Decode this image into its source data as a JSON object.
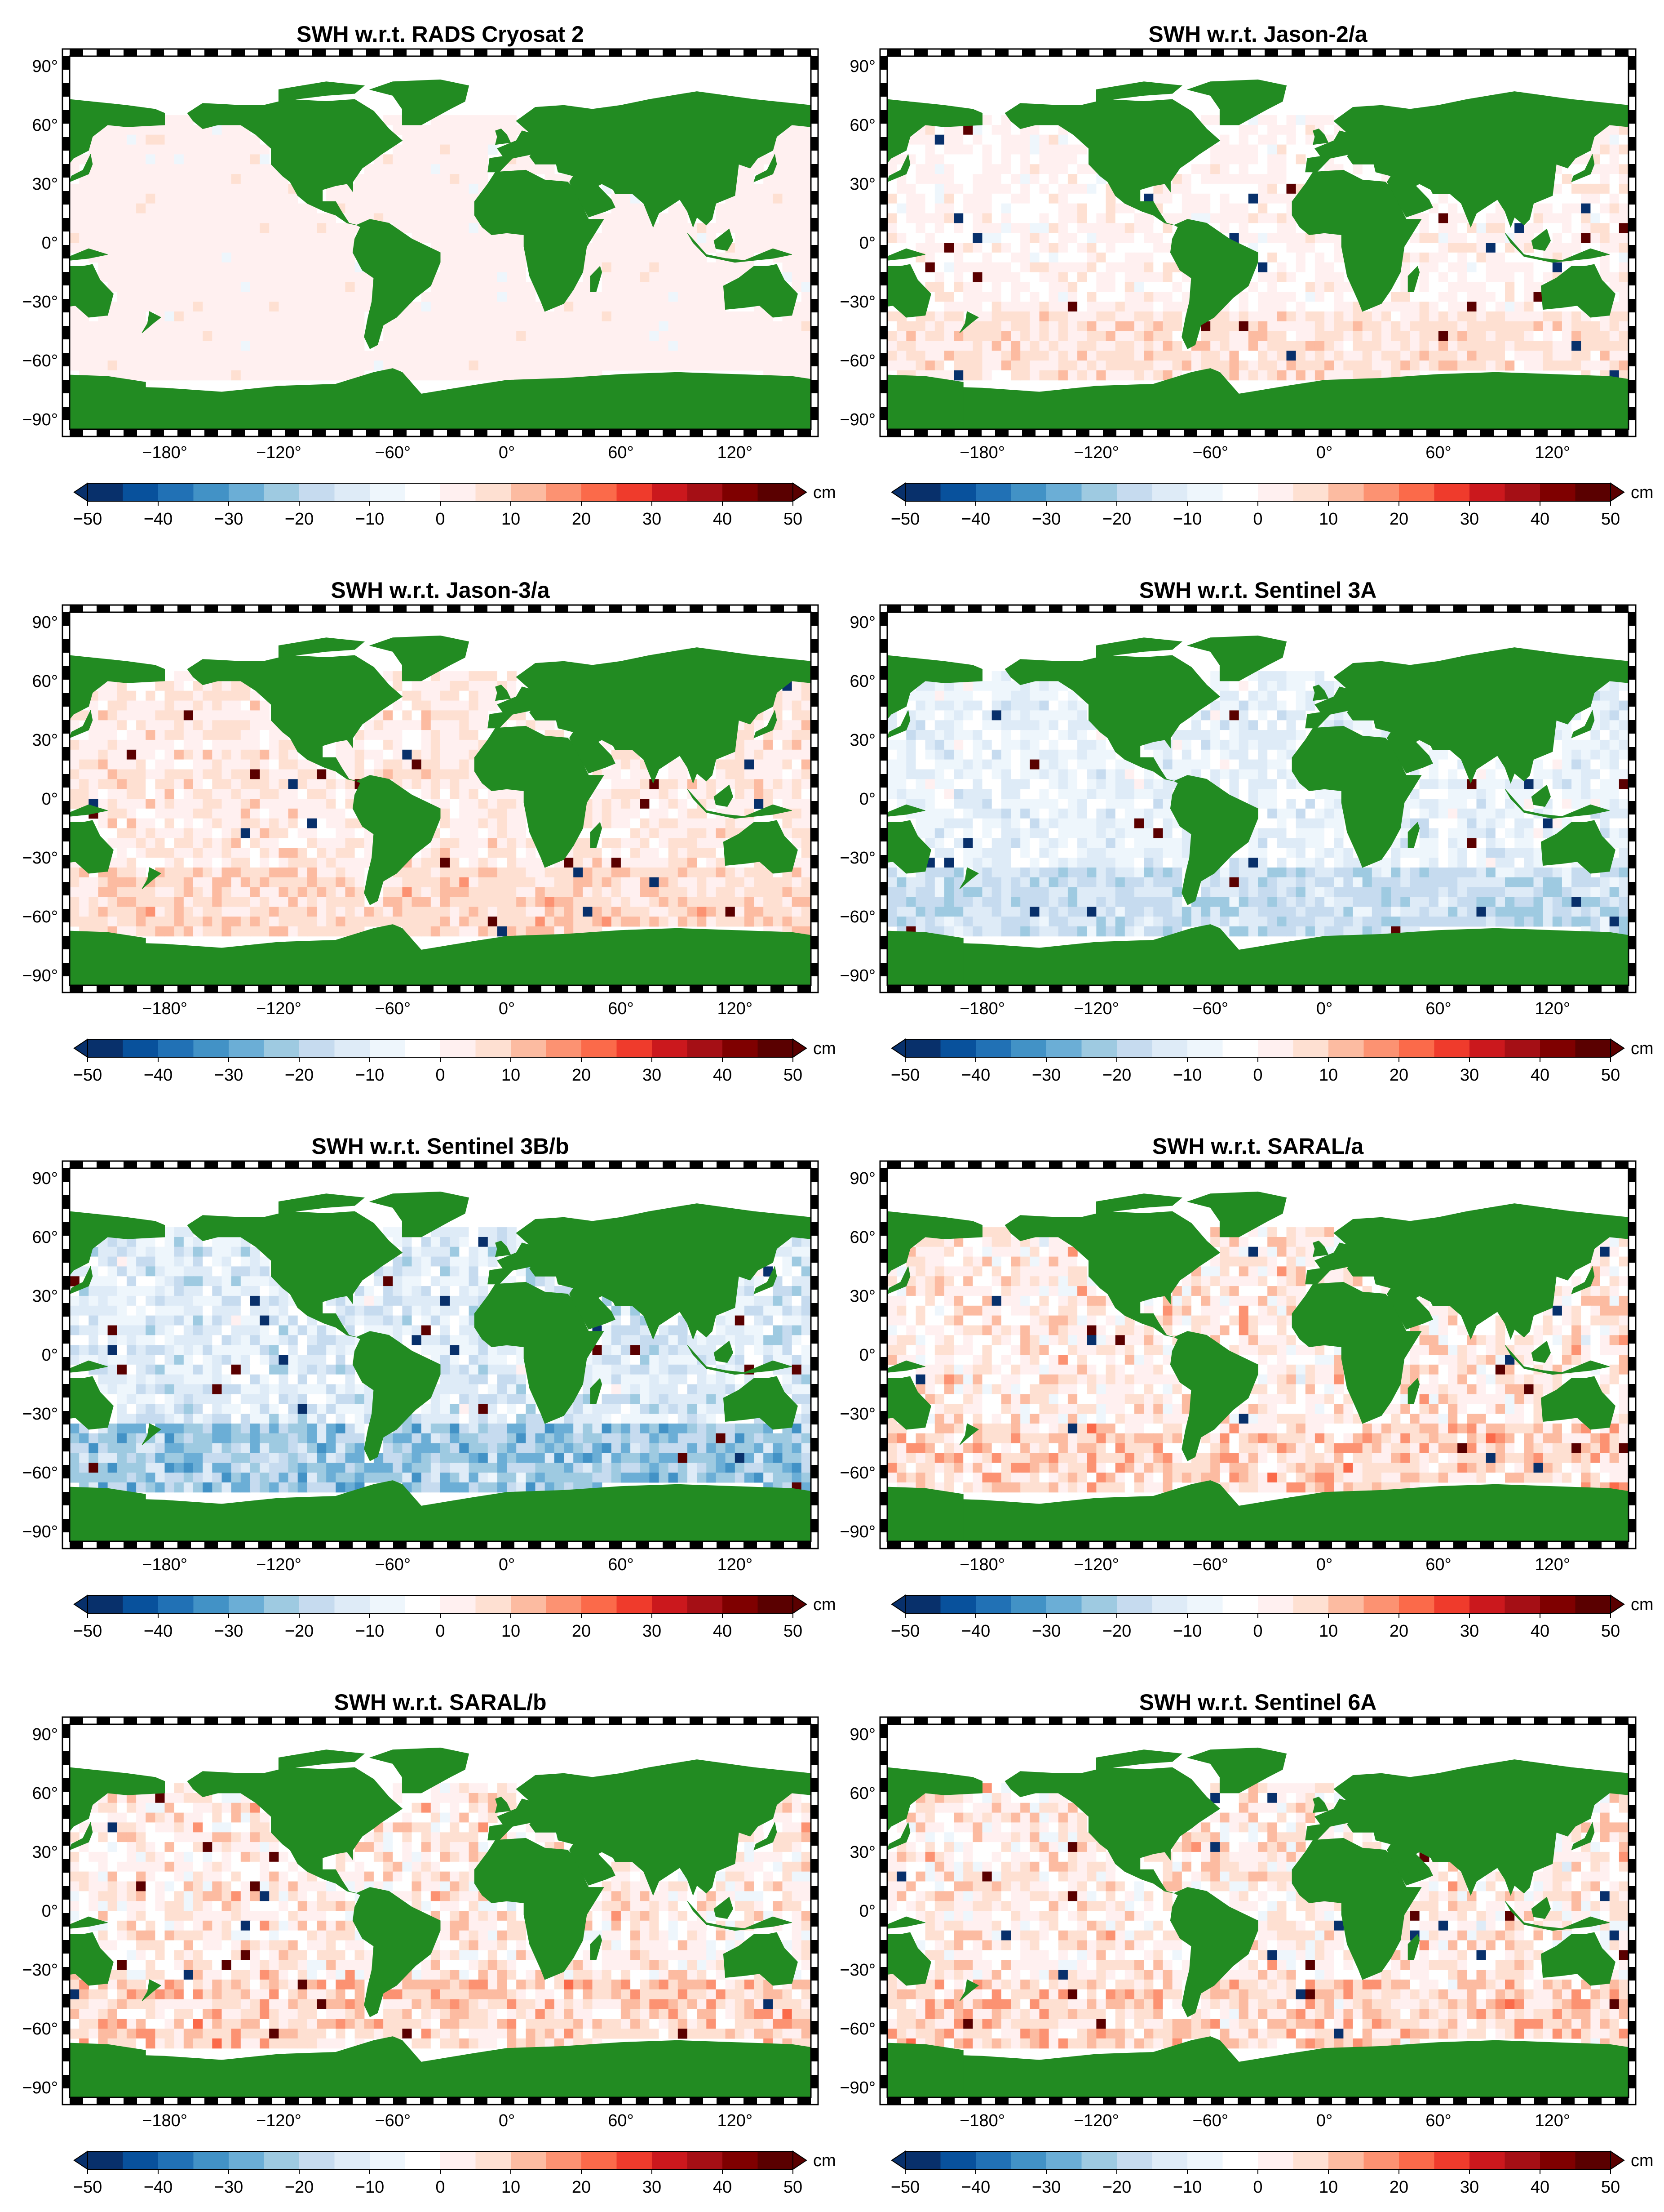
{
  "figure": {
    "panels": [
      {
        "title": "SWH w.r.t. RADS Cryosat 2",
        "pattern": "flat"
      },
      {
        "title": "SWH w.r.t. Jason-2/a",
        "pattern": "red_south"
      },
      {
        "title": "SWH w.r.t. Jason-3/a",
        "pattern": "red"
      },
      {
        "title": "SWH w.r.t. Sentinel 3A",
        "pattern": "blue"
      },
      {
        "title": "SWH w.r.t. Sentinel 3B/b",
        "pattern": "blue_strong"
      },
      {
        "title": "SWH w.r.t. SARAL/a",
        "pattern": "red_mixed"
      },
      {
        "title": "SWH w.r.t. SARAL/b",
        "pattern": "red_mixed"
      },
      {
        "title": "SWH w.r.t. Sentinel 6A",
        "pattern": "red_mixed"
      }
    ],
    "lat_ticks": [
      "90°",
      "60°",
      "30°",
      "0°",
      "−30°",
      "−60°",
      "−90°"
    ],
    "lon_ticks": [
      "−180°",
      "−120°",
      "−60°",
      "0°",
      "60°",
      "120°"
    ],
    "colorbar": {
      "unit": "cm",
      "ticks": [
        "−50",
        "−40",
        "−30",
        "−20",
        "−10",
        "0",
        "10",
        "20",
        "30",
        "40",
        "50"
      ],
      "range": [
        -50,
        50
      ],
      "colors": [
        "#08306b",
        "#08519c",
        "#2171b5",
        "#4292c6",
        "#6baed6",
        "#9ecae1",
        "#c6dbef",
        "#deebf7",
        "#eef6fc",
        "#ffffff",
        "#fff0f0",
        "#fee0d2",
        "#fcbba1",
        "#fc9272",
        "#fb6a4a",
        "#ef3b2c",
        "#cb181d",
        "#a50f15",
        "#7f0000",
        "#5a0000"
      ]
    },
    "land_color": "#228b22"
  }
}
